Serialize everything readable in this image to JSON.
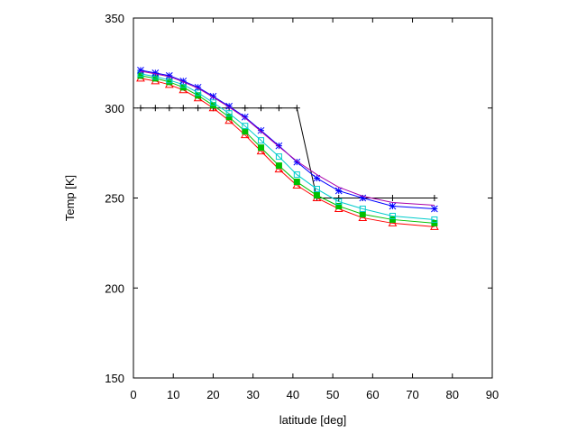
{
  "chart_data": {
    "type": "line",
    "title": "",
    "xlabel": "latitude [deg]",
    "ylabel": "Temp [K]",
    "xlim": [
      0,
      90
    ],
    "ylim": [
      150,
      350
    ],
    "xticks": [
      0,
      10,
      20,
      30,
      40,
      50,
      60,
      70,
      80,
      90
    ],
    "yticks": [
      150,
      200,
      250,
      300,
      350
    ],
    "grid": false,
    "legend": "none",
    "series": [
      {
        "color": "#000000",
        "marker": "plus",
        "x": [
          1.8,
          5.5,
          9,
          12.5,
          16.2,
          20,
          24,
          28,
          32,
          36.5,
          41,
          46,
          51.5,
          57.5,
          65,
          75.5
        ],
        "y": [
          300,
          300,
          300,
          300,
          300,
          300,
          300,
          300,
          300,
          300,
          300,
          250,
          250,
          250,
          250,
          250
        ]
      },
      {
        "color": "#ff0000",
        "marker": "triangle",
        "x": [
          1.8,
          5.5,
          9,
          12.5,
          16.2,
          20,
          24,
          28,
          32,
          36.5,
          41,
          46,
          51.5,
          57.5,
          65,
          75.5
        ],
        "y": [
          316.5,
          315,
          313,
          310,
          305.5,
          300,
          293,
          285,
          276,
          266,
          257,
          250,
          244,
          239,
          236,
          234
        ]
      },
      {
        "color": "#00c000",
        "marker": "square-filled",
        "x": [
          1.8,
          5.5,
          9,
          12.5,
          16.2,
          20,
          24,
          28,
          32,
          36.5,
          41,
          46,
          51.5,
          57.5,
          65,
          75.5
        ],
        "y": [
          318,
          316.5,
          314.5,
          311.5,
          307,
          301.5,
          295,
          287,
          278,
          268,
          259,
          251.5,
          245.5,
          241,
          238,
          236
        ]
      },
      {
        "color": "#00cccc",
        "marker": "square",
        "x": [
          1.8,
          5.5,
          9,
          12.5,
          16.2,
          20,
          24,
          28,
          32,
          36.5,
          41,
          46,
          51.5,
          57.5,
          65,
          75.5
        ],
        "y": [
          319,
          317.5,
          315.5,
          313,
          308.5,
          303,
          297,
          290,
          282,
          273,
          263,
          255,
          248,
          244,
          240,
          238
        ]
      },
      {
        "color": "#0000ff",
        "marker": "star",
        "x": [
          1.8,
          5.5,
          9,
          12.5,
          16.2,
          20,
          24,
          28,
          32,
          36.5,
          41,
          46,
          51.5,
          57.5,
          65,
          75.5
        ],
        "y": [
          321,
          319.5,
          318,
          315,
          311.5,
          306.5,
          301,
          295,
          287.5,
          279,
          270,
          261,
          254,
          250,
          245.5,
          244
        ]
      },
      {
        "color": "#aa00aa",
        "marker": "none",
        "x": [
          1.8,
          5.5,
          9,
          12.5,
          16.2,
          20,
          24,
          28,
          32,
          36.5,
          41,
          46,
          51.5,
          57.5,
          65,
          75.5
        ],
        "y": [
          320.5,
          319,
          317.5,
          314.5,
          311,
          306,
          300.5,
          294.5,
          287,
          278.5,
          270.5,
          263,
          256,
          251,
          247.5,
          246
        ]
      }
    ]
  }
}
